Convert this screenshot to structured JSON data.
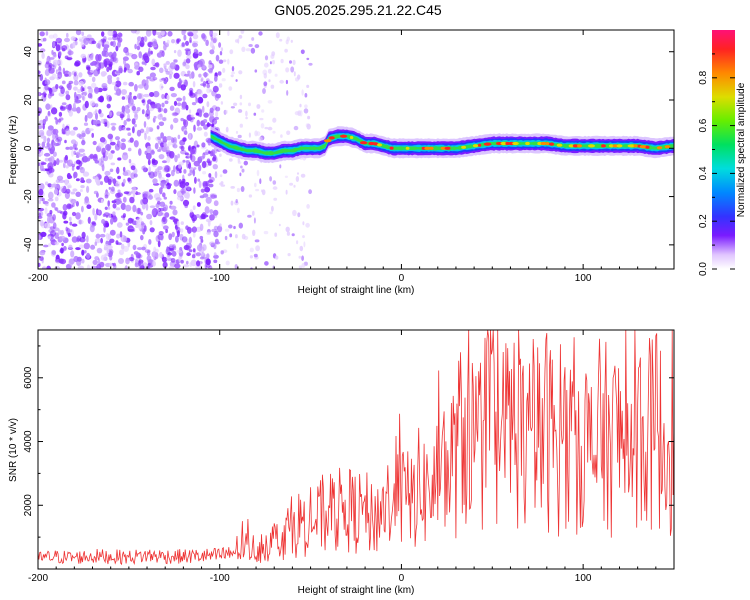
{
  "title": "GN05.2025.295.21.22.C45",
  "chart_data": [
    {
      "type": "heatmap",
      "name": "spectrogram",
      "xlabel": "Height of straight line (km)",
      "ylabel": "Frequency (Hz)",
      "xlim": [
        -200,
        150
      ],
      "ylim": [
        -50,
        49
      ],
      "xticks": [
        -200,
        -100,
        0,
        100
      ],
      "yticks": [
        -40,
        -20,
        0,
        20,
        40
      ],
      "colorbar": {
        "label": "Normalized spectral amplitude",
        "range": [
          0,
          1
        ],
        "ticks": [
          0.0,
          0.2,
          0.4,
          0.6,
          0.8
        ]
      },
      "noise_region_x": [
        -200,
        -100
      ],
      "sparse_region_x": [
        -100,
        -50
      ],
      "signal_track": [
        {
          "x": -105,
          "f": 5
        },
        {
          "x": -100,
          "f": 3
        },
        {
          "x": -95,
          "f": 1
        },
        {
          "x": -90,
          "f": 0
        },
        {
          "x": -85,
          "f": -1
        },
        {
          "x": -80,
          "f": -1
        },
        {
          "x": -75,
          "f": -2
        },
        {
          "x": -70,
          "f": -2
        },
        {
          "x": -65,
          "f": -1
        },
        {
          "x": -60,
          "f": -1
        },
        {
          "x": -55,
          "f": 0
        },
        {
          "x": -50,
          "f": 0
        },
        {
          "x": -45,
          "f": 0
        },
        {
          "x": -42,
          "f": 1
        },
        {
          "x": -40,
          "f": 4
        },
        {
          "x": -35,
          "f": 5
        },
        {
          "x": -30,
          "f": 5
        },
        {
          "x": -25,
          "f": 4
        },
        {
          "x": -20,
          "f": 2
        },
        {
          "x": -15,
          "f": 2
        },
        {
          "x": -10,
          "f": 1
        },
        {
          "x": -5,
          "f": 0
        },
        {
          "x": 0,
          "f": 0
        },
        {
          "x": 10,
          "f": 0
        },
        {
          "x": 20,
          "f": 0
        },
        {
          "x": 30,
          "f": 0
        },
        {
          "x": 40,
          "f": 1
        },
        {
          "x": 50,
          "f": 2
        },
        {
          "x": 60,
          "f": 2
        },
        {
          "x": 70,
          "f": 2
        },
        {
          "x": 80,
          "f": 2
        },
        {
          "x": 90,
          "f": 1
        },
        {
          "x": 100,
          "f": 1
        },
        {
          "x": 110,
          "f": 1
        },
        {
          "x": 120,
          "f": 1
        },
        {
          "x": 130,
          "f": 1
        },
        {
          "x": 140,
          "f": 0
        },
        {
          "x": 150,
          "f": 1
        }
      ]
    },
    {
      "type": "line",
      "name": "snr",
      "xlabel": "Height of straight line (km)",
      "ylabel": "SNR (10 * v/v)",
      "xlim": [
        -200,
        150
      ],
      "ylim": [
        0,
        7500
      ],
      "xticks": [
        -200,
        -100,
        0,
        100
      ],
      "yticks": [
        2000,
        4000,
        6000
      ],
      "series": [
        {
          "name": "SNR",
          "color": "#ee3333",
          "x": [
            -200,
            -190,
            -180,
            -170,
            -160,
            -150,
            -140,
            -130,
            -120,
            -110,
            -100,
            -95,
            -90,
            -85,
            -80,
            -75,
            -70,
            -65,
            -60,
            -55,
            -50,
            -45,
            -40,
            -35,
            -30,
            -25,
            -20,
            -15,
            -10,
            -5,
            0,
            5,
            10,
            15,
            20,
            25,
            30,
            35,
            40,
            45,
            50,
            55,
            60,
            65,
            70,
            75,
            80,
            85,
            90,
            95,
            100,
            105,
            110,
            115,
            120,
            125,
            130,
            135,
            140,
            145,
            150
          ],
          "y": [
            350,
            380,
            360,
            400,
            390,
            370,
            420,
            400,
            390,
            410,
            420,
            480,
            650,
            700,
            620,
            800,
            900,
            1100,
            1300,
            1500,
            1450,
            1600,
            1700,
            1800,
            1900,
            1750,
            1800,
            1500,
            2000,
            2200,
            2300,
            2100,
            2600,
            2400,
            2800,
            3000,
            3600,
            4500,
            3900,
            4200,
            4600,
            3900,
            4800,
            4300,
            3800,
            4100,
            4400,
            4000,
            3700,
            4200,
            4100,
            3600,
            4300,
            3900,
            4200,
            3800,
            4500,
            4000,
            4600,
            3700,
            4100
          ]
        }
      ]
    }
  ]
}
